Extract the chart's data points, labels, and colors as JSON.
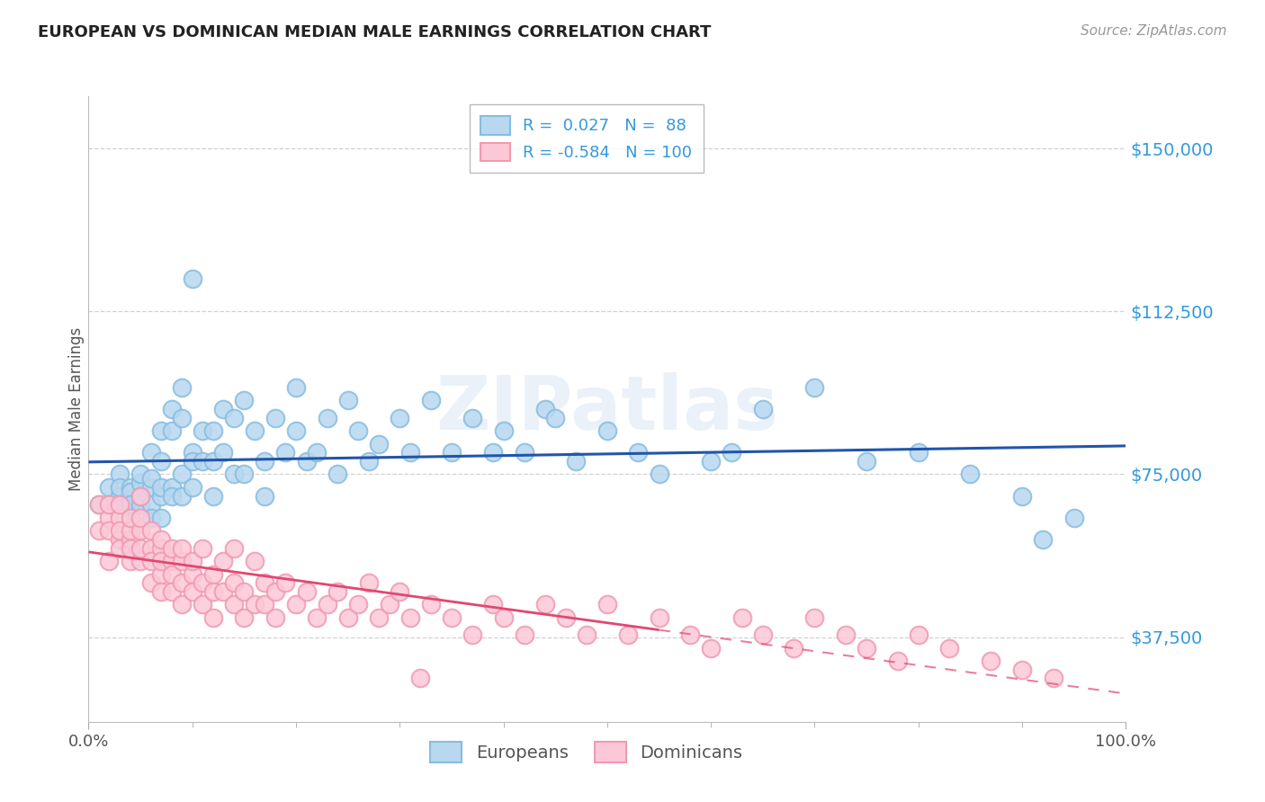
{
  "title": "EUROPEAN VS DOMINICAN MEDIAN MALE EARNINGS CORRELATION CHART",
  "source": "Source: ZipAtlas.com",
  "ylabel": "Median Male Earnings",
  "xlim": [
    0.0,
    1.0
  ],
  "ylim": [
    18000,
    162000
  ],
  "yticks": [
    37500,
    75000,
    112500,
    150000
  ],
  "ytick_labels": [
    "$37,500",
    "$75,000",
    "$112,500",
    "$150,000"
  ],
  "xtick_labels": [
    "0.0%",
    "100.0%"
  ],
  "background_color": "#ffffff",
  "grid_color": "#cccccc",
  "europeans_color": "#88bde0",
  "europeans_fill": "#b8d8f0",
  "dominicans_color": "#f09ab0",
  "dominicans_fill": "#fcc8d8",
  "regression_european_color": "#2255aa",
  "regression_dominican_color": "#e04870",
  "legend_R_european": "0.027",
  "legend_N_european": "88",
  "legend_R_dominican": "-0.584",
  "legend_N_dominican": "100",
  "eu_x": [
    0.01,
    0.02,
    0.02,
    0.03,
    0.03,
    0.03,
    0.03,
    0.04,
    0.04,
    0.04,
    0.04,
    0.04,
    0.05,
    0.05,
    0.05,
    0.05,
    0.06,
    0.06,
    0.06,
    0.06,
    0.06,
    0.07,
    0.07,
    0.07,
    0.07,
    0.07,
    0.08,
    0.08,
    0.08,
    0.08,
    0.09,
    0.09,
    0.09,
    0.09,
    0.1,
    0.1,
    0.1,
    0.1,
    0.11,
    0.11,
    0.12,
    0.12,
    0.12,
    0.13,
    0.13,
    0.14,
    0.14,
    0.15,
    0.15,
    0.16,
    0.17,
    0.17,
    0.18,
    0.19,
    0.2,
    0.2,
    0.21,
    0.22,
    0.23,
    0.24,
    0.25,
    0.26,
    0.27,
    0.28,
    0.3,
    0.31,
    0.33,
    0.35,
    0.37,
    0.39,
    0.4,
    0.42,
    0.44,
    0.45,
    0.47,
    0.5,
    0.53,
    0.55,
    0.6,
    0.62,
    0.65,
    0.7,
    0.75,
    0.8,
    0.85,
    0.9,
    0.92,
    0.95
  ],
  "eu_y": [
    68000,
    72000,
    68000,
    70000,
    75000,
    68000,
    72000,
    69000,
    72000,
    65000,
    71000,
    68000,
    73000,
    68000,
    75000,
    70000,
    80000,
    72000,
    68000,
    65000,
    74000,
    85000,
    78000,
    70000,
    65000,
    72000,
    90000,
    85000,
    72000,
    70000,
    95000,
    88000,
    75000,
    70000,
    80000,
    120000,
    72000,
    78000,
    85000,
    78000,
    85000,
    78000,
    70000,
    90000,
    80000,
    88000,
    75000,
    92000,
    75000,
    85000,
    78000,
    70000,
    88000,
    80000,
    95000,
    85000,
    78000,
    80000,
    88000,
    75000,
    92000,
    85000,
    78000,
    82000,
    88000,
    80000,
    92000,
    80000,
    88000,
    80000,
    85000,
    80000,
    90000,
    88000,
    78000,
    85000,
    80000,
    75000,
    78000,
    80000,
    90000,
    95000,
    78000,
    80000,
    75000,
    70000,
    60000,
    65000
  ],
  "dom_x": [
    0.01,
    0.01,
    0.02,
    0.02,
    0.02,
    0.02,
    0.03,
    0.03,
    0.03,
    0.03,
    0.03,
    0.04,
    0.04,
    0.04,
    0.04,
    0.04,
    0.05,
    0.05,
    0.05,
    0.05,
    0.05,
    0.06,
    0.06,
    0.06,
    0.06,
    0.07,
    0.07,
    0.07,
    0.07,
    0.07,
    0.08,
    0.08,
    0.08,
    0.08,
    0.09,
    0.09,
    0.09,
    0.09,
    0.1,
    0.1,
    0.1,
    0.11,
    0.11,
    0.11,
    0.12,
    0.12,
    0.12,
    0.13,
    0.13,
    0.14,
    0.14,
    0.14,
    0.15,
    0.15,
    0.16,
    0.16,
    0.17,
    0.17,
    0.18,
    0.18,
    0.19,
    0.2,
    0.21,
    0.22,
    0.23,
    0.24,
    0.25,
    0.26,
    0.27,
    0.28,
    0.29,
    0.3,
    0.31,
    0.32,
    0.33,
    0.35,
    0.37,
    0.39,
    0.4,
    0.42,
    0.44,
    0.46,
    0.48,
    0.5,
    0.52,
    0.55,
    0.58,
    0.6,
    0.63,
    0.65,
    0.68,
    0.7,
    0.73,
    0.75,
    0.78,
    0.8,
    0.83,
    0.87,
    0.9,
    0.93
  ],
  "dom_y": [
    68000,
    62000,
    65000,
    55000,
    62000,
    68000,
    60000,
    65000,
    58000,
    62000,
    68000,
    60000,
    62000,
    55000,
    65000,
    58000,
    70000,
    55000,
    62000,
    58000,
    65000,
    58000,
    55000,
    62000,
    50000,
    58000,
    52000,
    55000,
    60000,
    48000,
    55000,
    58000,
    52000,
    48000,
    55000,
    50000,
    45000,
    58000,
    52000,
    48000,
    55000,
    50000,
    58000,
    45000,
    52000,
    48000,
    42000,
    55000,
    48000,
    50000,
    45000,
    58000,
    48000,
    42000,
    55000,
    45000,
    50000,
    45000,
    48000,
    42000,
    50000,
    45000,
    48000,
    42000,
    45000,
    48000,
    42000,
    45000,
    50000,
    42000,
    45000,
    48000,
    42000,
    28000,
    45000,
    42000,
    38000,
    45000,
    42000,
    38000,
    45000,
    42000,
    38000,
    45000,
    38000,
    42000,
    38000,
    35000,
    42000,
    38000,
    35000,
    42000,
    38000,
    35000,
    32000,
    38000,
    35000,
    32000,
    30000,
    28000
  ]
}
